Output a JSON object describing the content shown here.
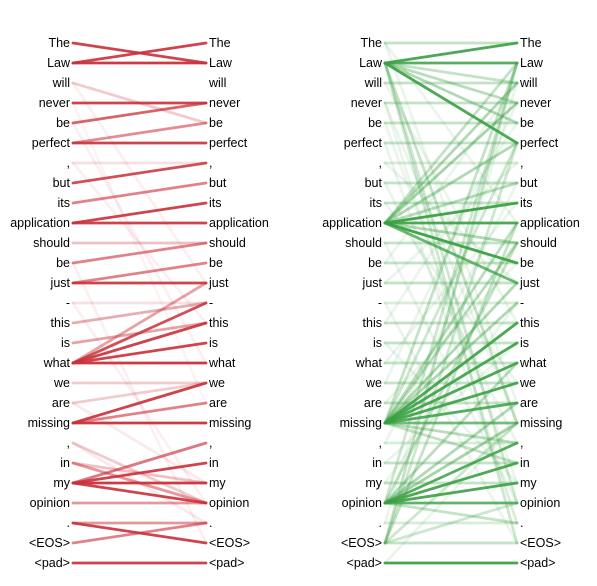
{
  "tokens": [
    "The",
    "Law",
    "will",
    "never",
    "be",
    "perfect",
    ",",
    "but",
    "its",
    "application",
    "should",
    "be",
    "just",
    "-",
    "this",
    "is",
    "what",
    "we",
    "are",
    "missing",
    ",",
    "in",
    "my",
    "opinion",
    ".",
    "<EOS>",
    "<pad>"
  ],
  "panels": [
    {
      "id": "left",
      "color": "#c9303a",
      "edges": [
        [
          0,
          1,
          0.9
        ],
        [
          1,
          1,
          0.95
        ],
        [
          1,
          0,
          0.9
        ],
        [
          2,
          4,
          0.25
        ],
        [
          3,
          3,
          0.9
        ],
        [
          4,
          3,
          0.75
        ],
        [
          5,
          5,
          0.9
        ],
        [
          5,
          4,
          0.55
        ],
        [
          6,
          6,
          0.15
        ],
        [
          7,
          6,
          0.85
        ],
        [
          8,
          7,
          0.6
        ],
        [
          9,
          9,
          0.9
        ],
        [
          9,
          8,
          0.9
        ],
        [
          10,
          10,
          0.3
        ],
        [
          11,
          10,
          0.6
        ],
        [
          12,
          12,
          0.9
        ],
        [
          12,
          11,
          0.6
        ],
        [
          13,
          13,
          0.15
        ],
        [
          14,
          13,
          0.4
        ],
        [
          15,
          14,
          0.45
        ],
        [
          16,
          13,
          0.85
        ],
        [
          16,
          14,
          0.9
        ],
        [
          16,
          15,
          0.9
        ],
        [
          16,
          16,
          0.95
        ],
        [
          16,
          12,
          0.45
        ],
        [
          17,
          17,
          0.25
        ],
        [
          18,
          17,
          0.25
        ],
        [
          19,
          17,
          0.9
        ],
        [
          19,
          18,
          0.6
        ],
        [
          19,
          19,
          0.95
        ],
        [
          20,
          23,
          0.25
        ],
        [
          21,
          23,
          0.5
        ],
        [
          21,
          22,
          0.3
        ],
        [
          22,
          20,
          0.65
        ],
        [
          22,
          21,
          0.9
        ],
        [
          22,
          22,
          0.95
        ],
        [
          22,
          23,
          0.9
        ],
        [
          23,
          23,
          0.5
        ],
        [
          24,
          24,
          0.5
        ],
        [
          24,
          25,
          0.9
        ],
        [
          25,
          24,
          0.6
        ],
        [
          26,
          26,
          0.9
        ],
        [
          2,
          12,
          0.08
        ],
        [
          6,
          14,
          0.08
        ],
        [
          3,
          18,
          0.06
        ],
        [
          11,
          25,
          0.08
        ],
        [
          4,
          16,
          0.07
        ],
        [
          18,
          22,
          0.1
        ],
        [
          20,
          24,
          0.1
        ],
        [
          13,
          23,
          0.08
        ]
      ]
    },
    {
      "id": "right",
      "color": "#3aa043",
      "edges": [
        [
          0,
          0,
          0.3
        ],
        [
          1,
          0,
          0.9
        ],
        [
          1,
          1,
          0.85
        ],
        [
          1,
          5,
          0.9
        ],
        [
          1,
          4,
          0.4
        ],
        [
          1,
          3,
          0.35
        ],
        [
          1,
          2,
          0.3
        ],
        [
          1,
          19,
          0.3
        ],
        [
          1,
          23,
          0.25
        ],
        [
          1,
          25,
          0.25
        ],
        [
          2,
          2,
          0.3
        ],
        [
          3,
          3,
          0.3
        ],
        [
          4,
          4,
          0.3
        ],
        [
          5,
          5,
          0.3
        ],
        [
          6,
          6,
          0.2
        ],
        [
          7,
          7,
          0.3
        ],
        [
          8,
          8,
          0.3
        ],
        [
          9,
          9,
          0.9
        ],
        [
          9,
          8,
          0.95
        ],
        [
          9,
          11,
          0.95
        ],
        [
          9,
          12,
          0.75
        ],
        [
          9,
          2,
          0.4
        ],
        [
          9,
          3,
          0.45
        ],
        [
          9,
          5,
          0.4
        ],
        [
          9,
          7,
          0.35
        ],
        [
          9,
          10,
          0.4
        ],
        [
          9,
          1,
          0.3
        ],
        [
          10,
          10,
          0.3
        ],
        [
          11,
          11,
          0.3
        ],
        [
          12,
          12,
          0.3
        ],
        [
          13,
          13,
          0.2
        ],
        [
          14,
          14,
          0.3
        ],
        [
          15,
          15,
          0.3
        ],
        [
          16,
          16,
          0.3
        ],
        [
          17,
          17,
          0.3
        ],
        [
          18,
          18,
          0.3
        ],
        [
          19,
          14,
          0.9
        ],
        [
          19,
          15,
          0.9
        ],
        [
          19,
          16,
          0.9
        ],
        [
          19,
          17,
          0.9
        ],
        [
          19,
          18,
          0.85
        ],
        [
          19,
          19,
          0.7
        ],
        [
          19,
          13,
          0.4
        ],
        [
          19,
          12,
          0.4
        ],
        [
          19,
          10,
          0.35
        ],
        [
          19,
          9,
          0.35
        ],
        [
          19,
          20,
          0.35
        ],
        [
          19,
          21,
          0.3
        ],
        [
          19,
          5,
          0.25
        ],
        [
          19,
          1,
          0.3
        ],
        [
          20,
          20,
          0.2
        ],
        [
          21,
          21,
          0.3
        ],
        [
          22,
          22,
          0.3
        ],
        [
          23,
          20,
          0.85
        ],
        [
          23,
          21,
          0.9
        ],
        [
          23,
          22,
          0.9
        ],
        [
          23,
          23,
          0.8
        ],
        [
          23,
          19,
          0.45
        ],
        [
          23,
          18,
          0.4
        ],
        [
          23,
          16,
          0.35
        ],
        [
          23,
          10,
          0.3
        ],
        [
          23,
          24,
          0.3
        ],
        [
          23,
          1,
          0.25
        ],
        [
          24,
          24,
          0.2
        ],
        [
          25,
          25,
          0.3
        ],
        [
          25,
          1,
          0.3
        ],
        [
          25,
          9,
          0.3
        ],
        [
          25,
          19,
          0.25
        ],
        [
          25,
          23,
          0.25
        ],
        [
          25,
          5,
          0.25
        ],
        [
          26,
          26,
          0.95
        ],
        [
          0,
          9,
          0.1
        ],
        [
          2,
          14,
          0.1
        ],
        [
          3,
          19,
          0.1
        ],
        [
          4,
          22,
          0.1
        ],
        [
          5,
          24,
          0.1
        ],
        [
          6,
          12,
          0.1
        ],
        [
          7,
          20,
          0.1
        ],
        [
          8,
          17,
          0.1
        ],
        [
          10,
          23,
          0.1
        ],
        [
          11,
          2,
          0.1
        ],
        [
          12,
          6,
          0.1
        ],
        [
          13,
          25,
          0.1
        ],
        [
          14,
          4,
          0.1
        ],
        [
          15,
          22,
          0.1
        ],
        [
          16,
          8,
          0.1
        ],
        [
          17,
          3,
          0.1
        ],
        [
          18,
          11,
          0.1
        ],
        [
          20,
          7,
          0.1
        ],
        [
          21,
          15,
          0.1
        ],
        [
          22,
          13,
          0.1
        ],
        [
          24,
          2,
          0.1
        ],
        [
          26,
          19,
          0.1
        ],
        [
          0,
          18,
          0.1
        ],
        [
          3,
          24,
          0.1
        ]
      ]
    }
  ]
}
